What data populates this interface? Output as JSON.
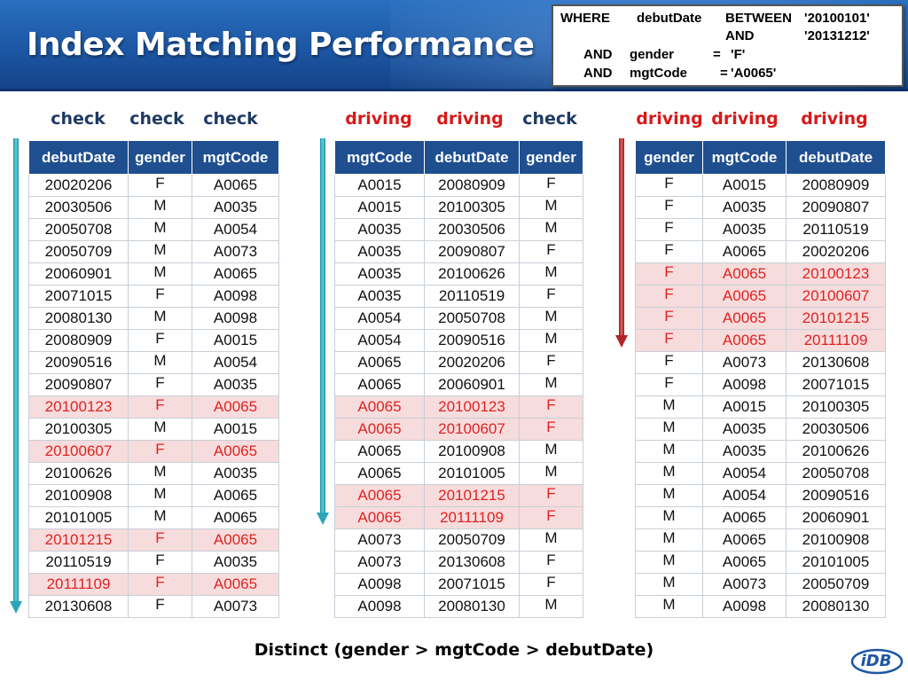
{
  "title": "Index Matching Performance",
  "sql": {
    "line1_kw": "WHERE",
    "line1_col": "debutDate",
    "line1_op": "BETWEEN",
    "line1_val": "'20100101'",
    "line2_kw": "AND",
    "line2_val": "'20131212'",
    "line3_kw": "AND",
    "line3_col": "gender",
    "line3_op": "=",
    "line3_val": "'F'",
    "line4_kw": "AND",
    "line4_col": "mgtCode",
    "line4_op": "=",
    "line4_val": "'A0065'"
  },
  "labels": {
    "t1": [
      "check",
      "check",
      "check"
    ],
    "t2": [
      "driving",
      "driving",
      "check"
    ],
    "t3": [
      "driving",
      "driving",
      "driving"
    ]
  },
  "colors": {
    "header_blue": "#1f4f8f",
    "highlight_bg": "#f6dcdc",
    "highlight_text": "#e02222",
    "check_label": "#1e3a64",
    "driving_label": "#d61a1a",
    "arrow_teal": "#2aa6b8",
    "arrow_red": "#b52424"
  },
  "table1": {
    "headers": [
      "debutDate",
      "gender",
      "mgtCode"
    ],
    "rows": [
      [
        "20020206",
        "F",
        "A0065",
        false
      ],
      [
        "20030506",
        "M",
        "A0035",
        false
      ],
      [
        "20050708",
        "M",
        "A0054",
        false
      ],
      [
        "20050709",
        "M",
        "A0073",
        false
      ],
      [
        "20060901",
        "M",
        "A0065",
        false
      ],
      [
        "20071015",
        "F",
        "A0098",
        false
      ],
      [
        "20080130",
        "M",
        "A0098",
        false
      ],
      [
        "20080909",
        "F",
        "A0015",
        false
      ],
      [
        "20090516",
        "M",
        "A0054",
        false
      ],
      [
        "20090807",
        "F",
        "A0035",
        false
      ],
      [
        "20100123",
        "F",
        "A0065",
        true
      ],
      [
        "20100305",
        "M",
        "A0015",
        false
      ],
      [
        "20100607",
        "F",
        "A0065",
        true
      ],
      [
        "20100626",
        "M",
        "A0035",
        false
      ],
      [
        "20100908",
        "M",
        "A0065",
        false
      ],
      [
        "20101005",
        "M",
        "A0065",
        false
      ],
      [
        "20101215",
        "F",
        "A0065",
        true
      ],
      [
        "20110519",
        "F",
        "A0035",
        false
      ],
      [
        "20111109",
        "F",
        "A0065",
        true
      ],
      [
        "20130608",
        "F",
        "A0073",
        false
      ]
    ]
  },
  "table2": {
    "headers": [
      "mgtCode",
      "debutDate",
      "gender"
    ],
    "rows": [
      [
        "A0015",
        "20080909",
        "F",
        false
      ],
      [
        "A0015",
        "20100305",
        "M",
        false
      ],
      [
        "A0035",
        "20030506",
        "M",
        false
      ],
      [
        "A0035",
        "20090807",
        "F",
        false
      ],
      [
        "A0035",
        "20100626",
        "M",
        false
      ],
      [
        "A0035",
        "20110519",
        "F",
        false
      ],
      [
        "A0054",
        "20050708",
        "M",
        false
      ],
      [
        "A0054",
        "20090516",
        "M",
        false
      ],
      [
        "A0065",
        "20020206",
        "F",
        false
      ],
      [
        "A0065",
        "20060901",
        "M",
        false
      ],
      [
        "A0065",
        "20100123",
        "F",
        true
      ],
      [
        "A0065",
        "20100607",
        "F",
        true
      ],
      [
        "A0065",
        "20100908",
        "M",
        false
      ],
      [
        "A0065",
        "20101005",
        "M",
        false
      ],
      [
        "A0065",
        "20101215",
        "F",
        true
      ],
      [
        "A0065",
        "20111109",
        "F",
        true
      ],
      [
        "A0073",
        "20050709",
        "M",
        false
      ],
      [
        "A0073",
        "20130608",
        "F",
        false
      ],
      [
        "A0098",
        "20071015",
        "F",
        false
      ],
      [
        "A0098",
        "20080130",
        "M",
        false
      ]
    ]
  },
  "table3": {
    "headers": [
      "gender",
      "mgtCode",
      "debutDate"
    ],
    "rows": [
      [
        "F",
        "A0015",
        "20080909",
        false
      ],
      [
        "F",
        "A0035",
        "20090807",
        false
      ],
      [
        "F",
        "A0035",
        "20110519",
        false
      ],
      [
        "F",
        "A0065",
        "20020206",
        false
      ],
      [
        "F",
        "A0065",
        "20100123",
        true
      ],
      [
        "F",
        "A0065",
        "20100607",
        true
      ],
      [
        "F",
        "A0065",
        "20101215",
        true
      ],
      [
        "F",
        "A0065",
        "20111109",
        true
      ],
      [
        "F",
        "A0073",
        "20130608",
        false
      ],
      [
        "F",
        "A0098",
        "20071015",
        false
      ],
      [
        "M",
        "A0015",
        "20100305",
        false
      ],
      [
        "M",
        "A0035",
        "20030506",
        false
      ],
      [
        "M",
        "A0035",
        "20100626",
        false
      ],
      [
        "M",
        "A0054",
        "20050708",
        false
      ],
      [
        "M",
        "A0054",
        "20090516",
        false
      ],
      [
        "M",
        "A0065",
        "20060901",
        false
      ],
      [
        "M",
        "A0065",
        "20100908",
        false
      ],
      [
        "M",
        "A0065",
        "20101005",
        false
      ],
      [
        "M",
        "A0073",
        "20050709",
        false
      ],
      [
        "M",
        "A0098",
        "20080130",
        false
      ]
    ]
  },
  "footer": "Distinct (gender > mgtCode > debutDate)",
  "logo_icon": "idb-logo-icon",
  "logo_text": "iDB"
}
